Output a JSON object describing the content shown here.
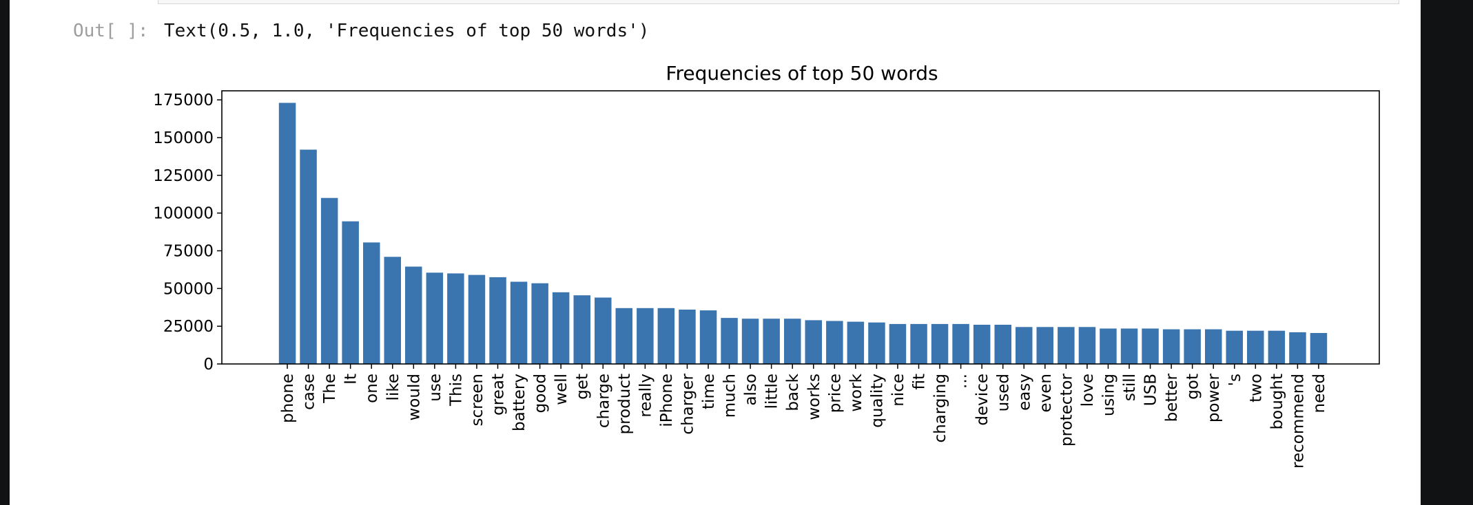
{
  "colors": {
    "bar": "#3a75b0",
    "axis": "#000000",
    "background": "#ffffff",
    "edge": "#111214"
  },
  "output": {
    "prompt": "Out[ ]:",
    "text": "Text(0.5, 1.0, 'Frequencies of top 50 words')"
  },
  "chart_data": {
    "type": "bar",
    "title": "Frequencies of top 50 words",
    "xlabel": "",
    "ylabel": "",
    "ylim": [
      0,
      181000
    ],
    "yticks": [
      0,
      25000,
      50000,
      75000,
      100000,
      125000,
      150000,
      175000
    ],
    "grid": false,
    "categories": [
      "phone",
      "case",
      "The",
      "It",
      "one",
      "like",
      "would",
      "use",
      "This",
      "screen",
      "great",
      "battery",
      "good",
      "well",
      "get",
      "charge",
      "product",
      "really",
      "iPhone",
      "charger",
      "time",
      "much",
      "also",
      "little",
      "back",
      "works",
      "price",
      "work",
      "quality",
      "nice",
      "fit",
      "charging",
      "...",
      "device",
      "used",
      "easy",
      "even",
      "protector",
      "love",
      "using",
      "still",
      "USB",
      "better",
      "got",
      "power",
      "'s",
      "two",
      "bought",
      "recommend",
      "need"
    ],
    "values": [
      173000,
      142000,
      110000,
      94500,
      80500,
      71000,
      64500,
      60500,
      60000,
      59000,
      57500,
      54500,
      53500,
      47500,
      45500,
      44000,
      37000,
      37000,
      37000,
      36000,
      35500,
      30500,
      30000,
      30000,
      30000,
      29000,
      28500,
      28000,
      27500,
      26500,
      26500,
      26500,
      26500,
      26000,
      26000,
      24500,
      24500,
      24500,
      24500,
      23500,
      23500,
      23500,
      23000,
      23000,
      23000,
      22000,
      22000,
      22000,
      21000,
      20500
    ]
  }
}
